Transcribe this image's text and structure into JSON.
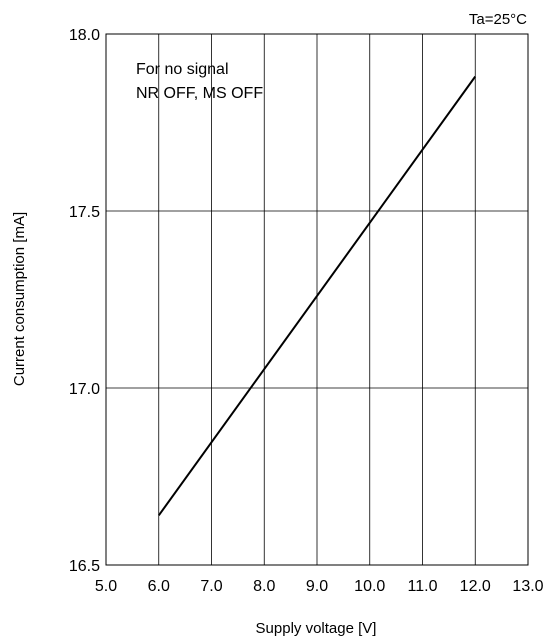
{
  "chart_data": {
    "type": "line",
    "title": "",
    "condition_note": "Ta=25°C",
    "annotation_lines": [
      "For no signal",
      "NR OFF, MS OFF"
    ],
    "xlabel": "Supply voltage [V]",
    "ylabel": "Current consumption [mA]",
    "xlim": [
      5.0,
      13.0
    ],
    "ylim": [
      16.5,
      18.0
    ],
    "x_ticks": [
      5.0,
      6.0,
      7.0,
      8.0,
      9.0,
      10.0,
      11.0,
      12.0,
      13.0
    ],
    "x_tick_labels": [
      "5.0",
      "6.0",
      "7.0",
      "8.0",
      "9.0",
      "10.0",
      "11.0",
      "12.0",
      "13.0"
    ],
    "y_ticks": [
      16.5,
      17.0,
      17.5,
      18.0
    ],
    "y_tick_labels": [
      "16.5",
      "17.0",
      "17.5",
      "18.0"
    ],
    "grid": true,
    "series": [
      {
        "x": [
          6.0,
          12.0
        ],
        "y": [
          16.64,
          17.88
        ],
        "color": "#000000"
      }
    ]
  }
}
